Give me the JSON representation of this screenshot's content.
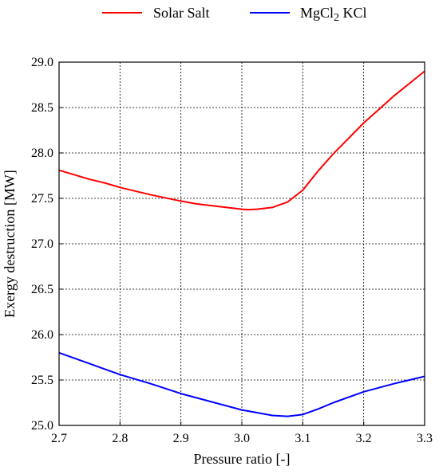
{
  "chart_data": {
    "type": "line",
    "title": "",
    "xlabel": "Pressure ratio [-]",
    "ylabel": "Exergy destruction [MW]",
    "xlim": [
      2.7,
      3.3
    ],
    "ylim": [
      25.0,
      29.0
    ],
    "xticks": [
      "2.7",
      "2.8",
      "2.9",
      "3.0",
      "3.1",
      "3.2",
      "3.3"
    ],
    "yticks": [
      "25.0",
      "25.5",
      "26.0",
      "26.5",
      "27.0",
      "27.5",
      "28.0",
      "28.5",
      "29.0"
    ],
    "grid": true,
    "legend_position": "top",
    "series": [
      {
        "name": "Solar Salt",
        "color": "#ff0000",
        "x": [
          2.7,
          2.75,
          2.775,
          2.8,
          2.85,
          2.9,
          2.925,
          2.95,
          3.0,
          3.01,
          3.025,
          3.05,
          3.075,
          3.1,
          3.125,
          3.15,
          3.2,
          3.25,
          3.3
        ],
        "y": [
          27.81,
          27.71,
          27.67,
          27.62,
          27.54,
          27.47,
          27.44,
          27.42,
          27.38,
          27.375,
          27.38,
          27.4,
          27.46,
          27.59,
          27.8,
          27.99,
          28.33,
          28.63,
          28.9
        ]
      },
      {
        "name": "MgCl2 KCl",
        "color": "#0000ff",
        "x": [
          2.7,
          2.75,
          2.8,
          2.85,
          2.9,
          2.95,
          3.0,
          3.025,
          3.05,
          3.075,
          3.1,
          3.125,
          3.15,
          3.2,
          3.25,
          3.3
        ],
        "y": [
          25.8,
          25.68,
          25.56,
          25.46,
          25.35,
          25.26,
          25.17,
          25.14,
          25.11,
          25.1,
          25.12,
          25.18,
          25.25,
          25.37,
          25.46,
          25.54
        ]
      }
    ]
  },
  "legend": {
    "items": [
      {
        "prefix": "Solar Salt",
        "sub": "",
        "suffix": ""
      },
      {
        "prefix": "MgCl",
        "sub": "2",
        "suffix": " KCl"
      }
    ]
  }
}
